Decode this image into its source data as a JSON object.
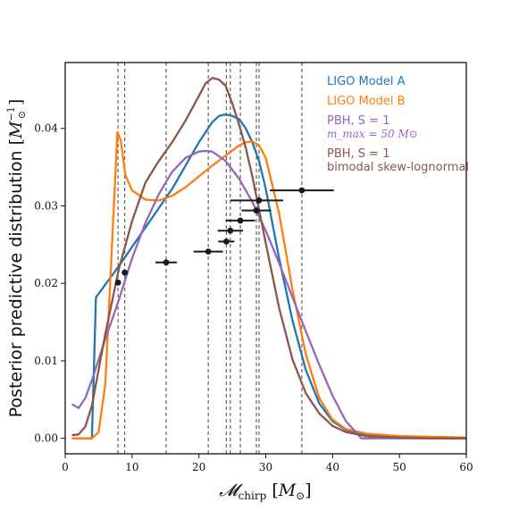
{
  "chart_data": {
    "type": "line",
    "title": "",
    "xlabel": "𝓜chirp [M⊙]",
    "ylabel": "Posterior predictive distribution [M⊙⁻¹]",
    "xlim": [
      0,
      60
    ],
    "ylim": [
      -0.002,
      0.0485
    ],
    "xticks": [
      0,
      10,
      20,
      30,
      40,
      50,
      60
    ],
    "xtick_labels": [
      "0",
      "10",
      "20",
      "30",
      "40",
      "50",
      "60"
    ],
    "yticks": [
      0,
      0.01,
      0.02,
      0.03,
      0.04
    ],
    "ytick_labels": [
      "0.00",
      "0.01",
      "0.02",
      "0.03",
      "0.04"
    ],
    "grid": false,
    "legend_position": "top-right",
    "colors": {
      "model_a": "#1f77b4",
      "model_b": "#ff7f0e",
      "pbh_mmax": "#9467bd",
      "pbh_bimodal": "#8c564b",
      "events": "#1a1a1a",
      "vlines": "#555555"
    },
    "legend": [
      {
        "key": "model_a",
        "label": "LIGO Model A"
      },
      {
        "key": "model_b",
        "label": "LIGO Model B"
      },
      {
        "key": "pbh_mmax",
        "label": "PBH, S = 1",
        "sublabel": "m_max = 50 M⊙"
      },
      {
        "key": "pbh_bimodal",
        "label": "PBH, S = 1",
        "sublabel": "bimodal skew-lognormal"
      }
    ],
    "series": [
      {
        "key": "model_a",
        "name": "LIGO Model A",
        "x": [
          1,
          4,
          4.6,
          8,
          12,
          16,
          20,
          22,
          23,
          24,
          25,
          26,
          27,
          28,
          29,
          30,
          32,
          34,
          36,
          38,
          40,
          42,
          45,
          50,
          55,
          60
        ],
        "y": [
          0,
          0,
          0.0182,
          0.0222,
          0.0272,
          0.0322,
          0.0382,
          0.0408,
          0.0416,
          0.0418,
          0.0416,
          0.0412,
          0.04,
          0.0382,
          0.0358,
          0.0322,
          0.0232,
          0.0152,
          0.0088,
          0.0045,
          0.0022,
          0.0011,
          0.0004,
          0.0001,
          0,
          0
        ]
      },
      {
        "key": "model_b",
        "name": "LIGO Model B",
        "x": [
          1,
          4,
          5,
          6,
          7,
          7.8,
          8.3,
          9,
          10,
          12,
          14,
          16,
          18,
          20,
          22,
          24,
          26,
          27,
          28,
          29,
          30,
          32,
          34,
          36,
          38,
          40,
          42,
          45,
          50,
          55,
          60
        ],
        "y": [
          0,
          0,
          0.0008,
          0.007,
          0.025,
          0.0395,
          0.0385,
          0.034,
          0.032,
          0.0308,
          0.0307,
          0.0313,
          0.0324,
          0.0338,
          0.0352,
          0.0365,
          0.0378,
          0.0382,
          0.0383,
          0.0378,
          0.0362,
          0.029,
          0.0192,
          0.0108,
          0.0052,
          0.0024,
          0.0012,
          0.0006,
          0.0003,
          0.0002,
          0.0001
        ]
      },
      {
        "key": "pbh_mmax",
        "name": "PBH, S = 1, m_max = 50 M⊙",
        "x": [
          1,
          2,
          3,
          4,
          6,
          8,
          10,
          12,
          14,
          16,
          18,
          20,
          21,
          22,
          24,
          26,
          28,
          30,
          32,
          34,
          36,
          38,
          40,
          42,
          44.3,
          46,
          50,
          55,
          60
        ],
        "y": [
          0.0044,
          0.0039,
          0.0052,
          0.0075,
          0.0128,
          0.0178,
          0.0232,
          0.0278,
          0.0315,
          0.0344,
          0.0362,
          0.037,
          0.0371,
          0.037,
          0.0358,
          0.0335,
          0.0305,
          0.0268,
          0.0226,
          0.0182,
          0.0138,
          0.0095,
          0.0055,
          0.0022,
          0,
          0,
          0,
          0,
          0
        ]
      },
      {
        "key": "pbh_bimodal",
        "name": "PBH, S = 1, bimodal skew-lognormal",
        "x": [
          1,
          2,
          3,
          4,
          6,
          8,
          10,
          12,
          14,
          16,
          18,
          20,
          21,
          22,
          23,
          24,
          25,
          26,
          27,
          28,
          30,
          32,
          34,
          36,
          38,
          40,
          42,
          45,
          50,
          55,
          60
        ],
        "y": [
          0.0004,
          0.0005,
          0.0015,
          0.0042,
          0.0135,
          0.0218,
          0.028,
          0.033,
          0.0358,
          0.0382,
          0.041,
          0.0442,
          0.0458,
          0.0465,
          0.0463,
          0.0455,
          0.0432,
          0.0405,
          0.0375,
          0.0338,
          0.0252,
          0.0168,
          0.0102,
          0.0058,
          0.0032,
          0.0016,
          0.0008,
          0.0003,
          0.0001,
          0,
          0
        ]
      }
    ],
    "events": [
      {
        "x": 7.9,
        "y": 0.0201,
        "xerr": [
          0,
          0
        ]
      },
      {
        "x": 8.9,
        "y": 0.0214,
        "xerr": [
          0,
          0
        ]
      },
      {
        "x": 15.1,
        "y": 0.0227,
        "xerr": [
          1.6,
          1.6
        ]
      },
      {
        "x": 21.4,
        "y": 0.0241,
        "xerr": [
          2.2,
          2.2
        ]
      },
      {
        "x": 24.1,
        "y": 0.0254,
        "xerr": [
          1.2,
          1.2
        ]
      },
      {
        "x": 24.7,
        "y": 0.0268,
        "xerr": [
          1.9,
          1.9
        ]
      },
      {
        "x": 26.2,
        "y": 0.0281,
        "xerr": [
          2.2,
          2.2
        ]
      },
      {
        "x": 28.6,
        "y": 0.0294,
        "xerr": [
          2.2,
          2.2
        ]
      },
      {
        "x": 29.0,
        "y": 0.0307,
        "xerr": [
          4.3,
          3.6
        ]
      },
      {
        "x": 35.4,
        "y": 0.032,
        "xerr": [
          4.8,
          4.8
        ]
      }
    ],
    "vlines": [
      7.9,
      8.9,
      15.1,
      21.4,
      24.1,
      24.7,
      26.2,
      28.6,
      29.0,
      35.4
    ]
  }
}
